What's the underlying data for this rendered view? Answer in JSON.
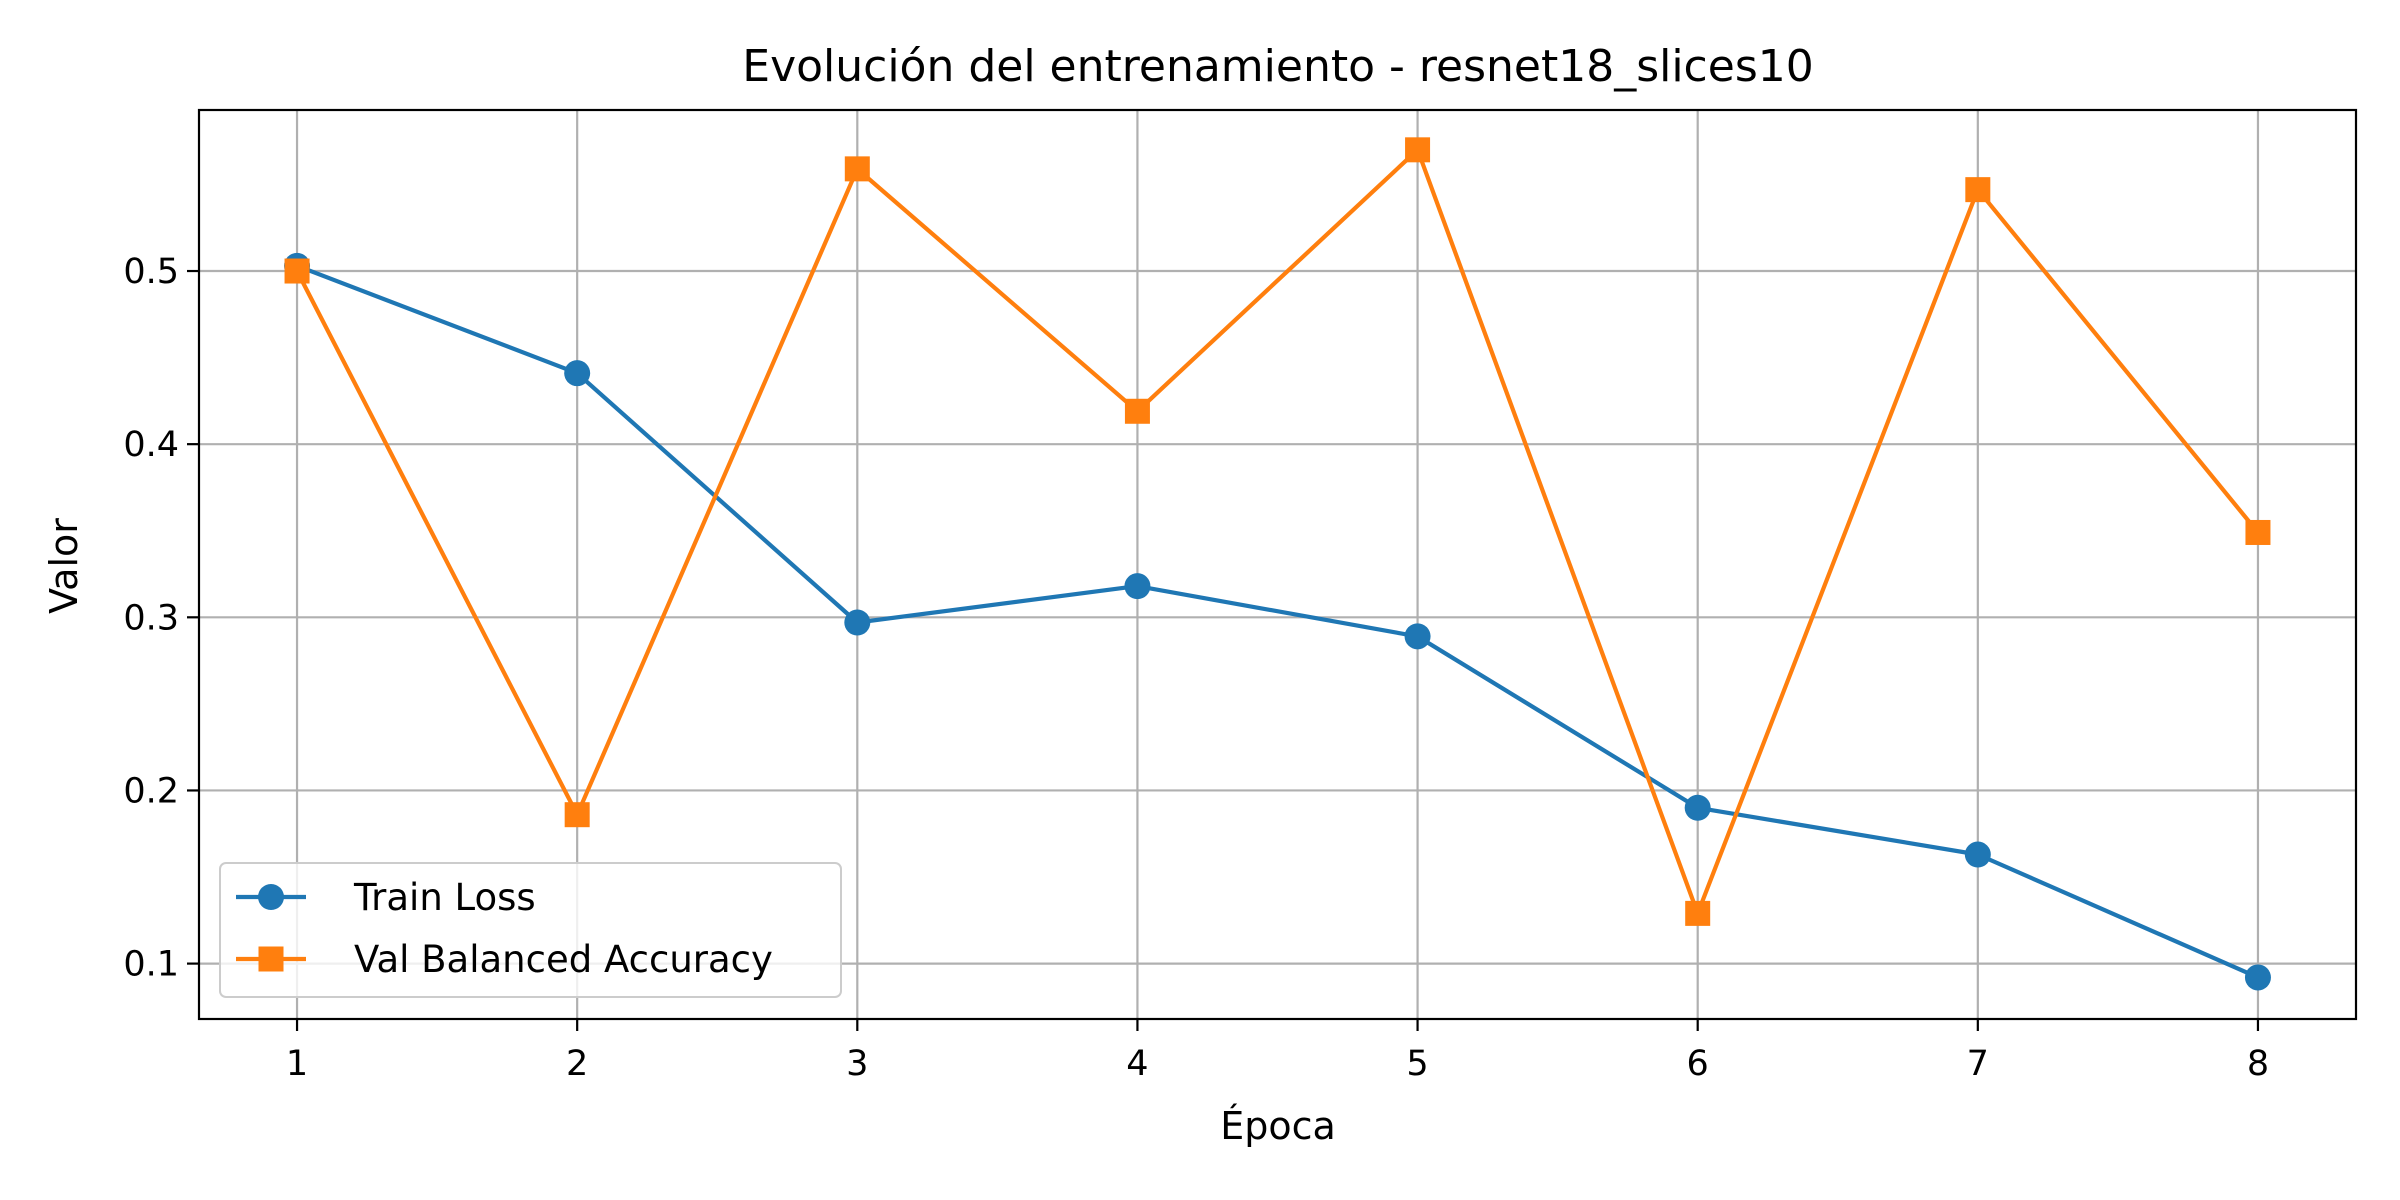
{
  "chart_data": {
    "type": "line",
    "title": "Evolución del entrenamiento - resnet18_slices10",
    "xlabel": "Época",
    "ylabel": "Valor",
    "x": [
      1,
      2,
      3,
      4,
      5,
      6,
      7,
      8
    ],
    "xticks": [
      "1",
      "2",
      "3",
      "4",
      "5",
      "6",
      "7",
      "8"
    ],
    "yticks": [
      0.1,
      0.2,
      0.3,
      0.4,
      0.5
    ],
    "ytick_labels": [
      "0.1",
      "0.2",
      "0.3",
      "0.4",
      "0.5"
    ],
    "xlim": [
      0.65,
      8.35
    ],
    "ylim": [
      0.068,
      0.593
    ],
    "grid": true,
    "legend_position": "lower-left",
    "series": [
      {
        "name": "Train Loss",
        "values": [
          0.503,
          0.441,
          0.297,
          0.318,
          0.289,
          0.19,
          0.163,
          0.092
        ],
        "color": "#1f77b4",
        "marker": "circle"
      },
      {
        "name": "Val Balanced Accuracy",
        "values": [
          0.5,
          0.186,
          0.559,
          0.419,
          0.57,
          0.129,
          0.547,
          0.349
        ],
        "color": "#ff7f0e",
        "marker": "square"
      }
    ]
  }
}
